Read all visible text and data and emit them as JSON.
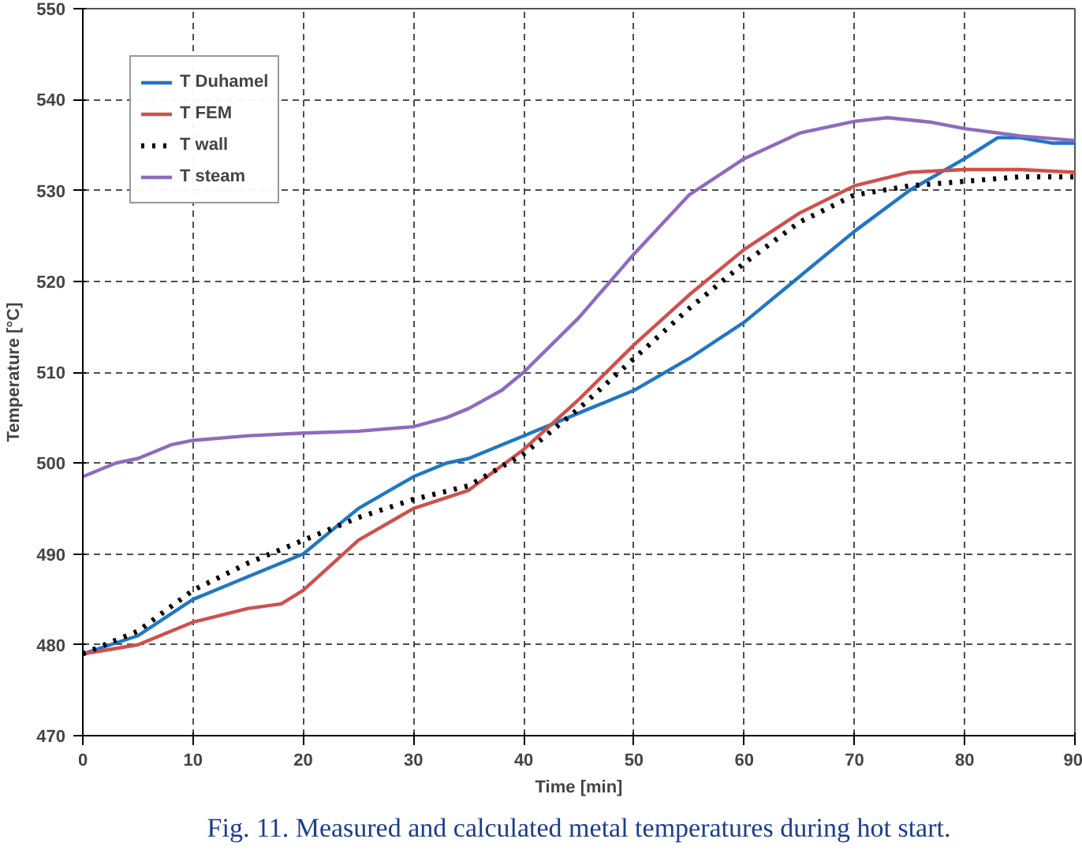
{
  "chart_data": {
    "type": "line",
    "xlabel": "Time [min]",
    "ylabel": "Temperature [°C]",
    "xlim": [
      0,
      90
    ],
    "ylim": [
      470,
      550
    ],
    "xticks": [
      0,
      10,
      20,
      30,
      40,
      50,
      60,
      70,
      80,
      90
    ],
    "yticks": [
      470,
      480,
      490,
      500,
      510,
      520,
      530,
      540,
      550
    ],
    "grid": true,
    "legend": "top left",
    "annotations": [
      "Fig. 11. Measured and calculated metal temperatures during hot start."
    ],
    "series": [
      {
        "name": "T Duhamel",
        "color": "#1f77c4",
        "line_style": "solid",
        "x": [
          0,
          5,
          10,
          15,
          20,
          25,
          30,
          33,
          35,
          40,
          45,
          50,
          55,
          60,
          65,
          70,
          75,
          80,
          83,
          85,
          88,
          90
        ],
        "values": [
          479,
          481,
          485,
          487.5,
          490,
          495,
          498.5,
          500,
          500.5,
          503,
          505.5,
          508,
          511.5,
          515.5,
          520.5,
          525.5,
          530,
          533.5,
          535.8,
          535.8,
          535.2,
          535.2
        ]
      },
      {
        "name": "T FEM",
        "color": "#d0504c",
        "line_style": "solid",
        "x": [
          0,
          5,
          10,
          15,
          18,
          20,
          25,
          30,
          35,
          40,
          45,
          50,
          55,
          60,
          65,
          70,
          75,
          80,
          85,
          90
        ],
        "values": [
          479,
          480,
          482.5,
          484,
          484.5,
          486,
          491.5,
          495,
          497,
          501.5,
          507,
          513,
          518.5,
          523.5,
          527.5,
          530.5,
          532,
          532.3,
          532.3,
          532
        ]
      },
      {
        "name": "T wall",
        "color": "#000000",
        "line_style": "dotted",
        "x": [
          0,
          5,
          10,
          15,
          20,
          25,
          30,
          35,
          40,
          45,
          50,
          55,
          60,
          65,
          70,
          75,
          80,
          85,
          90
        ],
        "values": [
          479,
          481.5,
          486,
          489,
          491.5,
          494,
          496,
          497.5,
          501,
          506,
          511.5,
          517,
          522,
          526.5,
          529.5,
          530.5,
          531,
          531.5,
          531.5
        ]
      },
      {
        "name": "T steam",
        "color": "#8e6bbf",
        "line_style": "solid",
        "x": [
          0,
          3,
          5,
          8,
          10,
          15,
          20,
          25,
          30,
          33,
          35,
          38,
          40,
          45,
          50,
          55,
          60,
          65,
          70,
          73,
          77,
          80,
          85,
          90
        ],
        "values": [
          498.5,
          500,
          500.5,
          502,
          502.5,
          503,
          503.3,
          503.5,
          504,
          505,
          506,
          508,
          510,
          516,
          523,
          529.5,
          533.5,
          536.3,
          537.6,
          538,
          537.5,
          536.8,
          536,
          535.5
        ]
      }
    ]
  }
}
